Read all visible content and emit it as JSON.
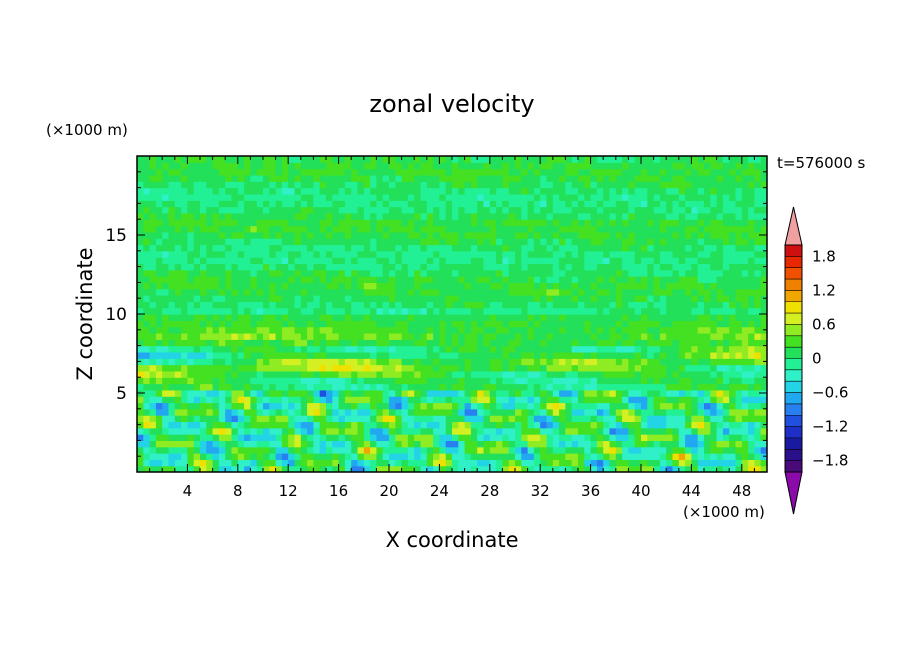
{
  "chart_data": {
    "type": "heatmap",
    "title": "zonal velocity",
    "time_label": "t=576000 s",
    "xlabel": "X coordinate",
    "ylabel": "Z coordinate",
    "x_unit": "(×1000 m)",
    "y_unit": "(×1000 m)",
    "xlim": [
      0,
      50
    ],
    "ylim": [
      0,
      20
    ],
    "x_ticks": [
      4,
      8,
      12,
      16,
      20,
      24,
      28,
      32,
      36,
      40,
      44,
      48
    ],
    "y_ticks": [
      5,
      10,
      15
    ],
    "colorbar": {
      "min": -2.0,
      "max": 2.0,
      "step": 0.2,
      "tick_labels": [
        "1.8",
        "1.2",
        "0.6",
        "0",
        "−0.6",
        "−1.2",
        "−1.8"
      ],
      "tick_values": [
        1.8,
        1.2,
        0.6,
        0,
        -0.6,
        -1.2,
        -1.8
      ],
      "colors_low_to_high": [
        "#4b0a7a",
        "#2c0f8a",
        "#1a1aa0",
        "#1e2fc8",
        "#2050e0",
        "#2a7ff0",
        "#22a8f0",
        "#22d4e6",
        "#30f0c8",
        "#22f094",
        "#22e05a",
        "#44e022",
        "#90ec22",
        "#d4f022",
        "#f0e000",
        "#f0a800",
        "#f08000",
        "#f05000",
        "#e82800",
        "#d01010"
      ],
      "under_color": "#8a0aaa",
      "over_color": "#f0a0a0"
    },
    "field_summary": [
      {
        "z_range": [
          0,
          5
        ],
        "description_values": "turbulent, values mostly between -0.6 and 0.8"
      },
      {
        "z_range": [
          5,
          10
        ],
        "description_values": "shear layer: positive jet near z=6-8 up to ~0.8, negative patches to ~-1.0"
      },
      {
        "z_range": [
          10,
          20
        ],
        "description_values": "smooth layered bands between about -0.2 and 0.2"
      }
    ]
  }
}
